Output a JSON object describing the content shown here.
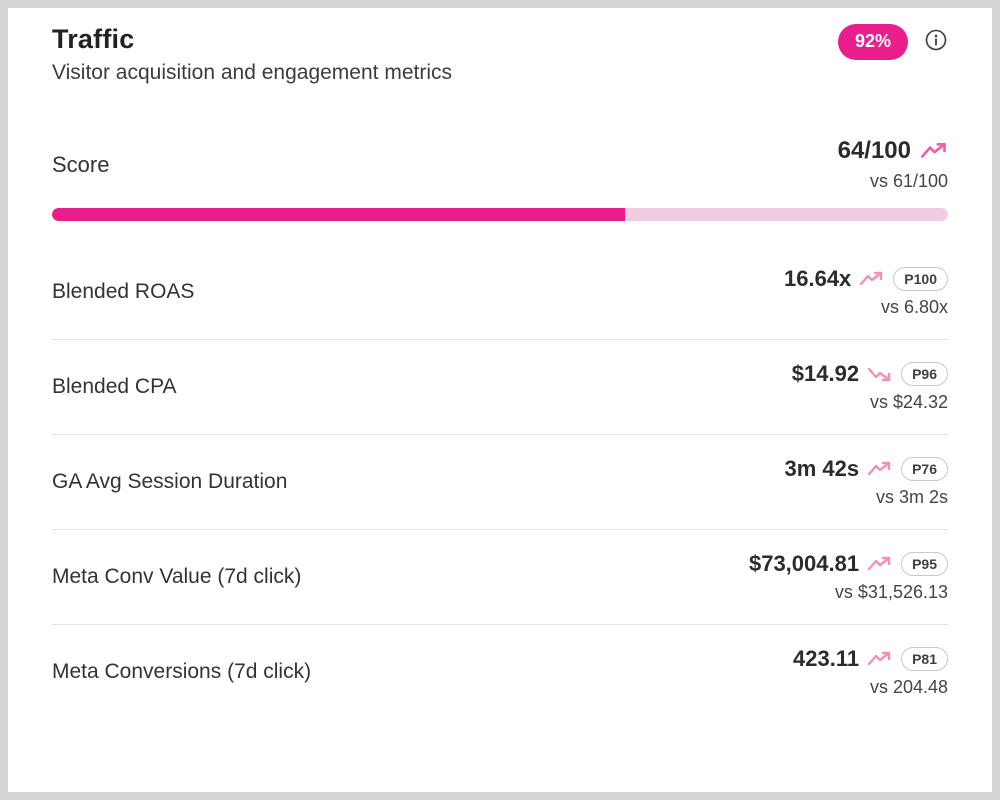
{
  "header": {
    "title": "Traffic",
    "subtitle": "Visitor acquisition and engagement metrics",
    "badge": "92%",
    "info_icon": "info-icon"
  },
  "score": {
    "label": "Score",
    "value": "64/100",
    "vs": "vs 61/100",
    "percent": 64,
    "trend": "up"
  },
  "metrics": [
    {
      "label": "Blended ROAS",
      "value": "16.64x",
      "trend": "up",
      "percentile": "P100",
      "vs": "vs 6.80x"
    },
    {
      "label": "Blended CPA",
      "value": "$14.92",
      "trend": "down",
      "percentile": "P96",
      "vs": "vs $24.32"
    },
    {
      "label": "GA Avg Session Duration",
      "value": "3m 42s",
      "trend": "up",
      "percentile": "P76",
      "vs": "vs 3m 2s"
    },
    {
      "label": "Meta Conv Value (7d click)",
      "value": "$73,004.81",
      "trend": "up",
      "percentile": "P95",
      "vs": "vs $31,526.13"
    },
    {
      "label": "Meta Conversions (7d click)",
      "value": "423.11",
      "trend": "up",
      "percentile": "P81",
      "vs": "vs 204.48"
    }
  ],
  "colors": {
    "primary": "#e91e8c",
    "progress_track": "#f2cce2",
    "arrow_light": "#f48fb9",
    "arrow_strong": "#ee5fa7"
  }
}
